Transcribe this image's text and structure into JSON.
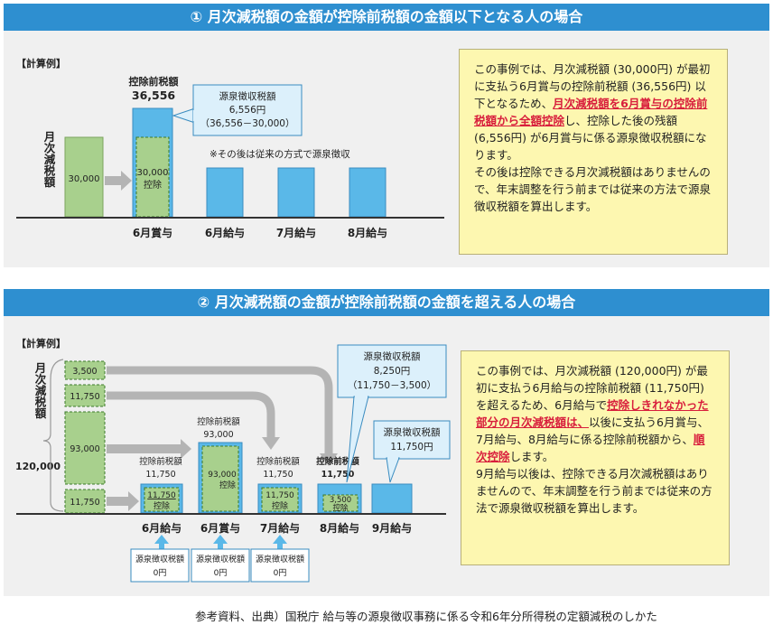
{
  "section1": {
    "title": "① 月次減税額の金額が控除前税額の金額以下となる人の場合",
    "calc_label": "【計算例】",
    "vert_label": "月次減税額",
    "bar_30000": "30,000",
    "pre_tax_title": "控除前税額",
    "pre_tax_value": "36,556",
    "deduct_value": "30,000",
    "deduct_word": "控除",
    "callout_title": "源泉徴収税額",
    "callout_value": "6,556円",
    "callout_calc": "（36,556－30,000）",
    "after_note": "※その後は従来の方式で源泉徴収",
    "x_labels": [
      "6月賞与",
      "6月給与",
      "7月給与",
      "8月給与"
    ],
    "note": {
      "t1": "この事例では、月次減税額 (30,000円) が最初に支払う6月賞与の控除前税額 (36,556円) 以下となるため、",
      "hl": "月次減税額を6月賞与の控除前税額から全額控除",
      "t2": "し、控除した後の残額 (6,556円) が6月賞与に係る源泉徴収税額になります。",
      "t3": "その後は控除できる月次減税額はありませんので、年末調整を行う前までは従来の方法で源泉徴収税額を算出します。"
    }
  },
  "section2": {
    "title": "② 月次減税額の金額が控除前税額の金額を超える人の場合",
    "calc_label": "【計算例】",
    "vert_label": "月次減税額",
    "total": "120,000",
    "seg_values": [
      "3,500",
      "11,750",
      "93,000",
      "11,750"
    ],
    "pre_tax_title": "控除前税額",
    "pre_tax_values": [
      "11,750",
      "93,000",
      "11,750",
      "11,750"
    ],
    "deduct_values": [
      "11,750",
      "93,000",
      "11,750",
      "3,500"
    ],
    "deduct_word": "控除",
    "callout1_title": "源泉徴収税額",
    "callout1_value": "8,250円",
    "callout1_calc": "（11,750－3,500）",
    "callout2_title": "源泉徴収税額",
    "callout2_value": "11,750円",
    "x_labels": [
      "6月給与",
      "6月賞与",
      "7月給与",
      "8月給与",
      "9月給与"
    ],
    "zero_box_title": "源泉徴収税額",
    "zero_box_value": "0円",
    "note": {
      "t1": "この事例では、月次減税額 (120,000円) が最初に支払う6月給与の控除前税額 (11,750円) を超えるため、6月給与で",
      "hl1": "控除しきれなかった部分の月次減税額は、",
      "t2": "以後に支払う6月賞与、7月給与、8月給与に係る控除前税額から、",
      "hl2": "順次控除",
      "t3": "します。",
      "t4": "9月給与以後は、控除できる月次減税額はありませんので、年末調整を行う前までは従来の方法で源泉徴収税額を算出します。"
    }
  },
  "footer": "参考資料、出典）国税庁 給与等の源泉徴収事務に係る令和6年分所得税の定額減税のしかた",
  "colors": {
    "header_blue": "#2e8fd0",
    "bar_blue": "#5ab8e8",
    "bar_green": "#a8d08d",
    "note_yellow": "#fdf7b0",
    "highlight_red": "#d81e3c",
    "arrow_gray": "#b4b4b4"
  }
}
